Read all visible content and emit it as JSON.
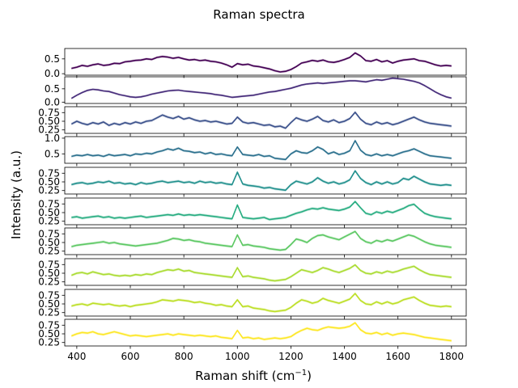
{
  "chart_data": {
    "type": "line",
    "title": "Raman spectra",
    "xlabel_main": "Raman shift (cm",
    "xlabel_sup": "−1",
    "xlabel_close": ")",
    "ylabel": "Intensity (a.u.)",
    "xlim": [
      355,
      1855
    ],
    "x_ticks": [
      "400",
      "600",
      "800",
      "1000",
      "1200",
      "1400",
      "1600",
      "1800"
    ],
    "x_tick_values": [
      400,
      600,
      800,
      1000,
      1200,
      1400,
      1600,
      1800
    ],
    "x": [
      380,
      400,
      420,
      440,
      460,
      480,
      500,
      520,
      540,
      560,
      580,
      600,
      620,
      640,
      660,
      680,
      700,
      720,
      740,
      760,
      780,
      800,
      820,
      840,
      860,
      880,
      900,
      920,
      940,
      960,
      980,
      1000,
      1020,
      1040,
      1060,
      1080,
      1100,
      1120,
      1140,
      1160,
      1180,
      1200,
      1220,
      1240,
      1260,
      1280,
      1300,
      1320,
      1340,
      1360,
      1380,
      1400,
      1420,
      1440,
      1460,
      1480,
      1500,
      1520,
      1540,
      1560,
      1580,
      1600,
      1620,
      1640,
      1660,
      1680,
      1700,
      1720,
      1740,
      1760,
      1780,
      1800
    ],
    "panels": [
      {
        "color": "#440154",
        "ylim": [
          -0.05,
          0.85
        ],
        "yticks": [
          "0.0",
          "0.5"
        ],
        "ytick_values": [
          0.0,
          0.5
        ],
        "values": [
          0.18,
          0.22,
          0.28,
          0.25,
          0.3,
          0.33,
          0.28,
          0.3,
          0.35,
          0.34,
          0.4,
          0.42,
          0.45,
          0.46,
          0.5,
          0.48,
          0.55,
          0.58,
          0.56,
          0.52,
          0.55,
          0.5,
          0.46,
          0.48,
          0.44,
          0.46,
          0.42,
          0.4,
          0.36,
          0.3,
          0.22,
          0.34,
          0.3,
          0.32,
          0.26,
          0.24,
          0.2,
          0.16,
          0.1,
          0.06,
          0.08,
          0.14,
          0.24,
          0.36,
          0.4,
          0.45,
          0.42,
          0.46,
          0.4,
          0.38,
          0.42,
          0.48,
          0.55,
          0.7,
          0.6,
          0.44,
          0.42,
          0.48,
          0.4,
          0.44,
          0.36,
          0.42,
          0.46,
          0.48,
          0.5,
          0.44,
          0.42,
          0.36,
          0.3,
          0.26,
          0.28,
          0.26
        ]
      },
      {
        "color": "#472d7b",
        "ylim": [
          -0.05,
          0.95
        ],
        "yticks": [
          "0.0",
          "0.5"
        ],
        "ytick_values": [
          0.0,
          0.5
        ],
        "values": [
          0.14,
          0.26,
          0.36,
          0.44,
          0.48,
          0.46,
          0.42,
          0.4,
          0.34,
          0.28,
          0.24,
          0.2,
          0.18,
          0.2,
          0.24,
          0.3,
          0.34,
          0.38,
          0.42,
          0.44,
          0.45,
          0.42,
          0.4,
          0.38,
          0.36,
          0.34,
          0.32,
          0.28,
          0.26,
          0.22,
          0.18,
          0.2,
          0.22,
          0.24,
          0.26,
          0.3,
          0.34,
          0.38,
          0.4,
          0.44,
          0.48,
          0.52,
          0.58,
          0.64,
          0.68,
          0.7,
          0.72,
          0.7,
          0.72,
          0.74,
          0.76,
          0.78,
          0.8,
          0.8,
          0.78,
          0.76,
          0.8,
          0.84,
          0.82,
          0.86,
          0.9,
          0.88,
          0.86,
          0.82,
          0.78,
          0.72,
          0.62,
          0.5,
          0.38,
          0.28,
          0.2,
          0.15
        ]
      },
      {
        "color": "#3b518b",
        "ylim": [
          0.15,
          0.92
        ],
        "yticks": [
          "0.25",
          "0.50",
          "0.75"
        ],
        "ytick_values": [
          0.25,
          0.5,
          0.75
        ],
        "values": [
          0.42,
          0.5,
          0.44,
          0.4,
          0.46,
          0.42,
          0.48,
          0.38,
          0.44,
          0.4,
          0.46,
          0.42,
          0.48,
          0.44,
          0.5,
          0.52,
          0.6,
          0.68,
          0.62,
          0.58,
          0.64,
          0.56,
          0.6,
          0.54,
          0.5,
          0.52,
          0.48,
          0.5,
          0.46,
          0.42,
          0.44,
          0.62,
          0.48,
          0.44,
          0.46,
          0.42,
          0.38,
          0.4,
          0.34,
          0.36,
          0.3,
          0.46,
          0.6,
          0.54,
          0.5,
          0.56,
          0.64,
          0.52,
          0.48,
          0.54,
          0.46,
          0.5,
          0.58,
          0.76,
          0.56,
          0.44,
          0.4,
          0.48,
          0.42,
          0.46,
          0.4,
          0.44,
          0.5,
          0.56,
          0.62,
          0.54,
          0.48,
          0.44,
          0.42,
          0.4,
          0.38,
          0.36
        ]
      },
      {
        "color": "#2c718e",
        "ylim": [
          0.2,
          1.05
        ],
        "yticks": [
          "0.5",
          "1.0"
        ],
        "ytick_values": [
          0.5,
          1.0
        ],
        "values": [
          0.42,
          0.46,
          0.44,
          0.48,
          0.44,
          0.46,
          0.42,
          0.48,
          0.44,
          0.46,
          0.48,
          0.44,
          0.5,
          0.48,
          0.52,
          0.5,
          0.56,
          0.6,
          0.66,
          0.62,
          0.68,
          0.6,
          0.58,
          0.54,
          0.56,
          0.5,
          0.54,
          0.48,
          0.5,
          0.46,
          0.44,
          0.72,
          0.48,
          0.46,
          0.44,
          0.48,
          0.42,
          0.44,
          0.36,
          0.34,
          0.32,
          0.5,
          0.6,
          0.54,
          0.52,
          0.6,
          0.72,
          0.64,
          0.5,
          0.56,
          0.48,
          0.52,
          0.6,
          0.92,
          0.62,
          0.48,
          0.44,
          0.5,
          0.44,
          0.48,
          0.44,
          0.5,
          0.56,
          0.6,
          0.66,
          0.58,
          0.5,
          0.44,
          0.42,
          0.4,
          0.38,
          0.36
        ]
      },
      {
        "color": "#21908d",
        "ylim": [
          0.15,
          0.92
        ],
        "yticks": [
          "0.25",
          "0.50",
          "0.75"
        ],
        "ytick_values": [
          0.25,
          0.5,
          0.75
        ],
        "values": [
          0.42,
          0.46,
          0.48,
          0.44,
          0.46,
          0.5,
          0.48,
          0.52,
          0.46,
          0.48,
          0.44,
          0.46,
          0.42,
          0.48,
          0.44,
          0.46,
          0.5,
          0.52,
          0.48,
          0.5,
          0.52,
          0.48,
          0.5,
          0.46,
          0.52,
          0.48,
          0.5,
          0.46,
          0.48,
          0.44,
          0.42,
          0.78,
          0.44,
          0.4,
          0.38,
          0.36,
          0.32,
          0.34,
          0.3,
          0.28,
          0.26,
          0.42,
          0.52,
          0.48,
          0.44,
          0.5,
          0.62,
          0.52,
          0.46,
          0.5,
          0.44,
          0.48,
          0.56,
          0.82,
          0.6,
          0.48,
          0.42,
          0.5,
          0.44,
          0.5,
          0.44,
          0.48,
          0.6,
          0.56,
          0.66,
          0.58,
          0.5,
          0.44,
          0.42,
          0.4,
          0.42,
          0.4
        ]
      },
      {
        "color": "#27ad81",
        "ylim": [
          0.15,
          0.92
        ],
        "yticks": [
          "0.25",
          "0.50",
          "0.75"
        ],
        "ytick_values": [
          0.25,
          0.5,
          0.75
        ],
        "values": [
          0.36,
          0.38,
          0.34,
          0.36,
          0.38,
          0.4,
          0.36,
          0.38,
          0.34,
          0.36,
          0.34,
          0.36,
          0.38,
          0.4,
          0.36,
          0.38,
          0.4,
          0.42,
          0.44,
          0.42,
          0.46,
          0.42,
          0.44,
          0.42,
          0.44,
          0.42,
          0.4,
          0.38,
          0.36,
          0.34,
          0.32,
          0.72,
          0.36,
          0.34,
          0.32,
          0.34,
          0.36,
          0.3,
          0.32,
          0.34,
          0.36,
          0.42,
          0.48,
          0.52,
          0.58,
          0.62,
          0.6,
          0.64,
          0.6,
          0.58,
          0.56,
          0.6,
          0.66,
          0.82,
          0.64,
          0.48,
          0.44,
          0.52,
          0.48,
          0.54,
          0.5,
          0.56,
          0.62,
          0.7,
          0.74,
          0.6,
          0.48,
          0.42,
          0.38,
          0.36,
          0.34,
          0.32
        ]
      },
      {
        "color": "#5cc863",
        "ylim": [
          0.15,
          0.92
        ],
        "yticks": [
          "0.25",
          "0.50",
          "0.75"
        ],
        "ytick_values": [
          0.25,
          0.5,
          0.75
        ],
        "values": [
          0.38,
          0.42,
          0.44,
          0.46,
          0.48,
          0.5,
          0.52,
          0.48,
          0.5,
          0.46,
          0.44,
          0.42,
          0.4,
          0.42,
          0.44,
          0.46,
          0.48,
          0.52,
          0.56,
          0.62,
          0.6,
          0.56,
          0.58,
          0.54,
          0.52,
          0.48,
          0.46,
          0.44,
          0.42,
          0.4,
          0.38,
          0.72,
          0.42,
          0.44,
          0.4,
          0.38,
          0.36,
          0.32,
          0.3,
          0.28,
          0.3,
          0.44,
          0.6,
          0.56,
          0.5,
          0.62,
          0.7,
          0.72,
          0.66,
          0.62,
          0.58,
          0.66,
          0.74,
          0.82,
          0.62,
          0.52,
          0.48,
          0.56,
          0.52,
          0.58,
          0.54,
          0.6,
          0.66,
          0.72,
          0.68,
          0.6,
          0.52,
          0.46,
          0.42,
          0.4,
          0.38,
          0.36
        ]
      },
      {
        "color": "#aadc32",
        "ylim": [
          0.15,
          0.92
        ],
        "yticks": [
          "0.25",
          "0.50",
          "0.75"
        ],
        "ytick_values": [
          0.25,
          0.5,
          0.75
        ],
        "values": [
          0.44,
          0.5,
          0.52,
          0.48,
          0.54,
          0.5,
          0.46,
          0.48,
          0.44,
          0.42,
          0.44,
          0.42,
          0.46,
          0.44,
          0.48,
          0.46,
          0.52,
          0.56,
          0.6,
          0.58,
          0.62,
          0.56,
          0.58,
          0.52,
          0.5,
          0.48,
          0.46,
          0.44,
          0.42,
          0.4,
          0.38,
          0.66,
          0.4,
          0.42,
          0.38,
          0.36,
          0.34,
          0.3,
          0.28,
          0.3,
          0.32,
          0.4,
          0.5,
          0.6,
          0.56,
          0.52,
          0.58,
          0.66,
          0.62,
          0.56,
          0.52,
          0.58,
          0.64,
          0.74,
          0.58,
          0.5,
          0.48,
          0.54,
          0.5,
          0.56,
          0.52,
          0.56,
          0.62,
          0.66,
          0.7,
          0.6,
          0.52,
          0.46,
          0.44,
          0.42,
          0.4,
          0.38
        ]
      },
      {
        "color": "#bddf26",
        "ylim": [
          0.15,
          0.92
        ],
        "yticks": [
          "0.25",
          "0.50",
          "0.75"
        ],
        "ytick_values": [
          0.25,
          0.5,
          0.75
        ],
        "values": [
          0.44,
          0.48,
          0.5,
          0.46,
          0.52,
          0.5,
          0.48,
          0.5,
          0.46,
          0.44,
          0.46,
          0.42,
          0.46,
          0.48,
          0.5,
          0.52,
          0.56,
          0.62,
          0.6,
          0.58,
          0.62,
          0.6,
          0.58,
          0.54,
          0.56,
          0.52,
          0.5,
          0.46,
          0.48,
          0.44,
          0.42,
          0.62,
          0.42,
          0.44,
          0.38,
          0.36,
          0.34,
          0.3,
          0.28,
          0.3,
          0.32,
          0.4,
          0.52,
          0.62,
          0.58,
          0.52,
          0.56,
          0.66,
          0.6,
          0.56,
          0.52,
          0.58,
          0.64,
          0.8,
          0.6,
          0.5,
          0.48,
          0.56,
          0.5,
          0.56,
          0.5,
          0.54,
          0.62,
          0.66,
          0.7,
          0.6,
          0.52,
          0.46,
          0.44,
          0.42,
          0.44,
          0.42
        ]
      },
      {
        "color": "#fde725",
        "ylim": [
          0.15,
          0.92
        ],
        "yticks": [
          "0.25",
          "0.50",
          "0.75"
        ],
        "ytick_values": [
          0.25,
          0.5,
          0.75
        ],
        "values": [
          0.44,
          0.5,
          0.54,
          0.52,
          0.56,
          0.5,
          0.48,
          0.52,
          0.56,
          0.52,
          0.48,
          0.44,
          0.46,
          0.44,
          0.42,
          0.44,
          0.46,
          0.48,
          0.5,
          0.46,
          0.5,
          0.48,
          0.46,
          0.44,
          0.46,
          0.44,
          0.42,
          0.44,
          0.4,
          0.38,
          0.36,
          0.6,
          0.38,
          0.4,
          0.36,
          0.38,
          0.34,
          0.36,
          0.38,
          0.36,
          0.38,
          0.42,
          0.52,
          0.6,
          0.66,
          0.62,
          0.6,
          0.66,
          0.7,
          0.68,
          0.66,
          0.68,
          0.72,
          0.82,
          0.62,
          0.52,
          0.5,
          0.54,
          0.48,
          0.52,
          0.46,
          0.5,
          0.52,
          0.5,
          0.48,
          0.44,
          0.4,
          0.38,
          0.36,
          0.34,
          0.32,
          0.3
        ]
      }
    ]
  }
}
